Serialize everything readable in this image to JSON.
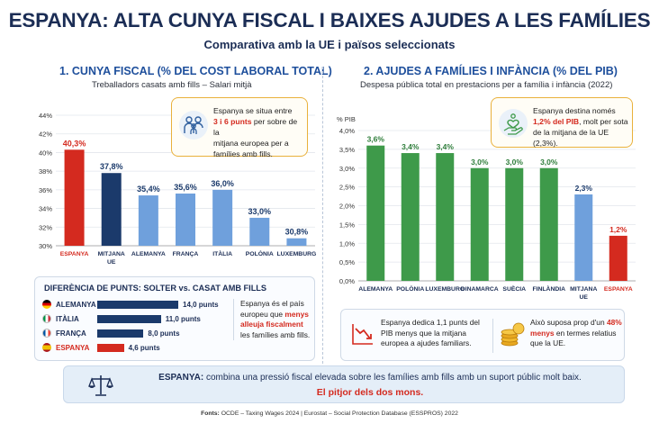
{
  "header": {
    "title": "ESPANYA: ALTA CUNYA FISCAL I BAIXES AJUDES A LES FAMÍLIES",
    "subtitle": "Comparativa amb la UE i països seleccionats"
  },
  "left": {
    "title": "1. CUNYA FISCAL (% DEL COST LABORAL TOTAL)",
    "subtitle": "Treballadors casats amb fills – Salari mitjà",
    "callout": {
      "line1": "Espanya se situa entre",
      "highlight": "3 i 6 punts",
      "line2_rest": " per sobre de la",
      "line3": "mitjana europea per a",
      "line4": "famílies amb fills.",
      "icon": "family-icon"
    }
  },
  "right": {
    "title": "2. AJUDES A FAMÍLIES I INFÀNCIA (% DEL PIB)",
    "subtitle": "Despesa pública total en prestacions per a família i infància (2022)",
    "callout": {
      "line1": "Espanya destina només",
      "highlight": "1,2% del PIB",
      "line2_rest": ", molt per sota",
      "line3": "de la mitjana de la UE (2,3%).",
      "icon": "hand-heart-icon"
    }
  },
  "chart_data": [
    {
      "type": "bar",
      "title": "1. CUNYA FISCAL (% DEL COST LABORAL TOTAL)",
      "ylabel": "",
      "ylim": [
        30,
        44
      ],
      "yticks": [
        30,
        32,
        34,
        36,
        38,
        40,
        42,
        44
      ],
      "ytick_labels": [
        "30%",
        "32%",
        "34%",
        "36%",
        "38%",
        "40%",
        "42%",
        "44%"
      ],
      "categories": [
        "ESPANYA",
        "MITJANA UE",
        "ALEMANYA",
        "FRANÇA",
        "ITÀLIA",
        "POLÒNIA",
        "LUXEMBURG"
      ],
      "values": [
        40.3,
        37.8,
        35.4,
        35.6,
        36.0,
        33.0,
        30.8
      ],
      "value_labels": [
        "40,3%",
        "37,8%",
        "35,4%",
        "35,6%",
        "36,0%",
        "33,0%",
        "30,8%"
      ],
      "colors": [
        "#d42a1f",
        "#1b3a6b",
        "#6fa0dc",
        "#6fa0dc",
        "#6fa0dc",
        "#6fa0dc",
        "#6fa0dc"
      ],
      "grid": true
    },
    {
      "type": "bar",
      "title": "2. AJUDES A FAMÍLIES I INFÀNCIA (% DEL PIB)",
      "ylabel": "% PIB",
      "ylim": [
        0,
        4
      ],
      "yticks": [
        0,
        0.5,
        1,
        1.5,
        2,
        2.5,
        3,
        3.5,
        4
      ],
      "ytick_labels": [
        "0,0%",
        "0,5%",
        "1,0%",
        "1,5%",
        "2,0%",
        "2,5%",
        "3,0%",
        "3,5%",
        "4,0%"
      ],
      "categories": [
        "ALEMANYA",
        "POLÒNIA",
        "LUXEMBURG",
        "DINAMARCA",
        "SUÈCIA",
        "FINLÀNDIA",
        "MITJANA UE",
        "ESPANYA"
      ],
      "values": [
        3.6,
        3.4,
        3.4,
        3.0,
        3.0,
        3.0,
        2.3,
        1.2
      ],
      "value_labels": [
        "3,6%",
        "3,4%",
        "3,4%",
        "3,0%",
        "3,0%",
        "3,0%",
        "2,3%",
        "1,2%"
      ],
      "colors": [
        "#3e9a4a",
        "#3e9a4a",
        "#3e9a4a",
        "#3e9a4a",
        "#3e9a4a",
        "#3e9a4a",
        "#6fa0dc",
        "#d42a1f"
      ],
      "grid": true
    },
    {
      "type": "bar",
      "title": "DIFERÈNCIA DE PUNTS: SOLTER vs. CASAT AMB FILLS",
      "orientation": "horizontal",
      "categories": [
        "ALEMANYA",
        "ITÀLIA",
        "FRANÇA",
        "ESPANYA"
      ],
      "values": [
        14.0,
        11.0,
        8.0,
        4.6
      ],
      "value_labels": [
        "14,0 punts",
        "11,0 punts",
        "8,0 punts",
        "4,6 punts"
      ],
      "colors": [
        "#1b3a6b",
        "#1b3a6b",
        "#1b3a6b",
        "#d42a1f"
      ]
    }
  ],
  "diff": {
    "title": "DIFERÈNCIA DE PUNTS: SOLTER vs. CASAT AMB FILLS",
    "note_pre": "Espanya és el país europeu que ",
    "note_hl": "menys alleuja fiscalment",
    "note_post": " les famílies amb fills."
  },
  "info": {
    "left_text": "Espanya dedica 1,1 punts del PIB menys que la mitjana europea a ajudes familiars.",
    "left_icon": "downtrend-chart-icon",
    "right_pre": "Això suposa prop d'un ",
    "right_hl": "48% menys",
    "right_post": " en termes relatius que la UE.",
    "right_icon": "coins-icon"
  },
  "banner": {
    "icon": "scales-icon",
    "lead": "ESPANYA:",
    "text": " combina una pressió fiscal elevada sobre les famílies amb fills amb un suport públic molt baix.",
    "red": "El pitjor dels dos mons."
  },
  "footer": {
    "label": "Fonts:",
    "text": " OCDE – Taxing Wages 2024 | Eurostat – Social Protection Database (ESSPROS) 2022"
  }
}
